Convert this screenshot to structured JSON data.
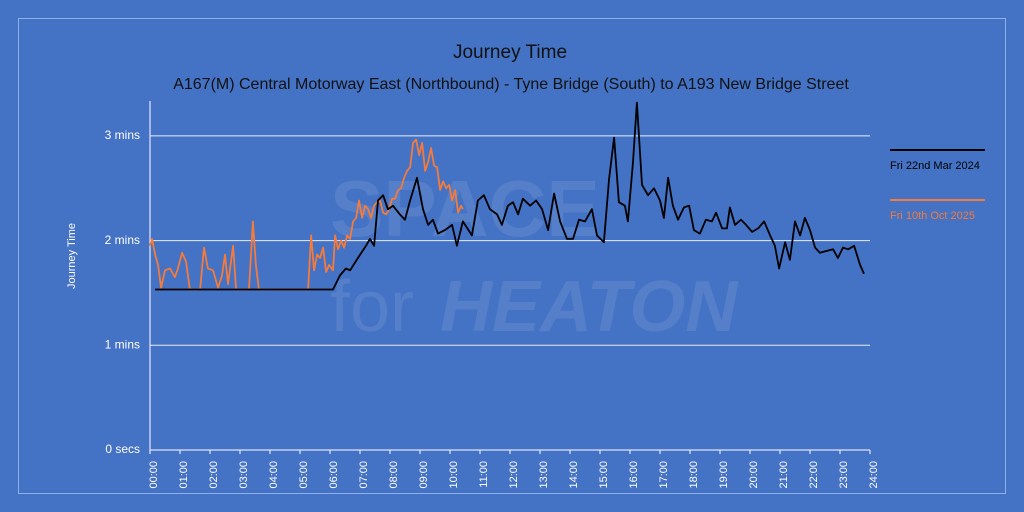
{
  "chart_data": {
    "type": "line",
    "title": "Journey Time",
    "subtitle": "A167(M) Central Motorway East (Northbound) - Tyne Bridge (South) to A193 New Bridge Street",
    "ylabel": "Journey Time",
    "watermark": [
      "SPACE",
      "for",
      "HEATON"
    ],
    "xlim": [
      0,
      24
    ],
    "xticks": [
      {
        "value": 0,
        "label": "00:00"
      },
      {
        "value": 1,
        "label": "01:00"
      },
      {
        "value": 2,
        "label": "02:00"
      },
      {
        "value": 3,
        "label": "03:00"
      },
      {
        "value": 4,
        "label": "04:00"
      },
      {
        "value": 5,
        "label": "05:00"
      },
      {
        "value": 6,
        "label": "06:00"
      },
      {
        "value": 7,
        "label": "07:00"
      },
      {
        "value": 8,
        "label": "08:00"
      },
      {
        "value": 9,
        "label": "09:00"
      },
      {
        "value": 10,
        "label": "10:00"
      },
      {
        "value": 11,
        "label": "11:00"
      },
      {
        "value": 12,
        "label": "12:00"
      },
      {
        "value": 13,
        "label": "13:00"
      },
      {
        "value": 14,
        "label": "14:00"
      },
      {
        "value": 15,
        "label": "15:00"
      },
      {
        "value": 16,
        "label": "16:00"
      },
      {
        "value": 17,
        "label": "17:00"
      },
      {
        "value": 18,
        "label": "18:00"
      },
      {
        "value": 19,
        "label": "19:00"
      },
      {
        "value": 20,
        "label": "20:00"
      },
      {
        "value": 21,
        "label": "21:00"
      },
      {
        "value": 22,
        "label": "22:00"
      },
      {
        "value": 23,
        "label": "23:00"
      },
      {
        "value": 24,
        "label": "24:00"
      }
    ],
    "ylim": [
      0,
      200
    ],
    "yticks": [
      {
        "value": 0,
        "label": "0 secs"
      },
      {
        "value": 60,
        "label": "1 mins"
      },
      {
        "value": 120,
        "label": "2 mins"
      },
      {
        "value": 180,
        "label": "3 mins"
      }
    ],
    "grid": true,
    "legend": "right",
    "series": [
      {
        "name": "Fri 22nd Mar 2024",
        "color": "#000000",
        "x": [
          0.17,
          5.67,
          6.1,
          6.33,
          6.53,
          6.67,
          6.93,
          7.2,
          7.33,
          7.47,
          7.6,
          7.77,
          7.93,
          8.1,
          8.33,
          8.5,
          8.67,
          8.9,
          9.1,
          9.27,
          9.43,
          9.6,
          9.83,
          10.07,
          10.23,
          10.43,
          10.73,
          10.93,
          11.13,
          11.33,
          11.57,
          11.73,
          11.93,
          12.1,
          12.27,
          12.43,
          12.67,
          12.87,
          13.07,
          13.27,
          13.47,
          13.67,
          13.9,
          14.1,
          14.3,
          14.5,
          14.73,
          14.9,
          15.13,
          15.3,
          15.47,
          15.63,
          15.83,
          15.93,
          16.1,
          16.23,
          16.4,
          16.6,
          16.8,
          17,
          17.13,
          17.27,
          17.43,
          17.6,
          17.8,
          17.97,
          18.13,
          18.33,
          18.53,
          18.73,
          18.87,
          19.07,
          19.23,
          19.33,
          19.5,
          19.7,
          19.87,
          20.07,
          20.27,
          20.47,
          20.67,
          20.83,
          20.97,
          21.17,
          21.33,
          21.5,
          21.67,
          21.83,
          22,
          22.17,
          22.33,
          22.53,
          22.77,
          22.93,
          23.1,
          23.27,
          23.47,
          23.67,
          23.8
        ],
        "values": [
          92,
          92,
          92,
          100,
          104,
          103,
          110,
          117,
          121,
          117,
          143,
          146,
          138,
          140,
          135,
          132,
          143,
          156,
          138,
          129,
          132,
          124,
          126,
          129,
          117,
          131,
          123,
          143,
          146,
          138,
          135,
          129,
          140,
          142,
          135,
          144,
          140,
          143,
          138,
          126,
          147,
          131,
          121,
          121,
          132,
          131,
          138,
          123,
          119,
          155,
          179,
          142,
          140,
          131,
          165,
          199,
          152,
          146,
          150,
          143,
          133,
          156,
          140,
          132,
          139,
          140,
          126,
          124,
          132,
          131,
          136,
          127,
          127,
          139,
          129,
          132,
          129,
          125,
          127,
          131,
          123,
          117,
          104,
          119,
          109,
          131,
          123,
          133,
          126,
          116,
          113,
          114,
          115,
          110,
          116,
          115,
          117,
          106,
          101
        ]
      },
      {
        "name": "Fri 10th Oct 2025",
        "color": "#f47b3c",
        "x": [
          0,
          0.07,
          0.17,
          0.27,
          0.37,
          0.5,
          0.67,
          0.83,
          0.93,
          1.07,
          1.2,
          1.33,
          1.67,
          1.8,
          1.93,
          2.1,
          2.27,
          2.4,
          2.5,
          2.6,
          2.77,
          2.87,
          3.3,
          3.43,
          3.53,
          3.63,
          5.27,
          5.37,
          5.47,
          5.57,
          5.67,
          5.77,
          5.87,
          5.97,
          6.1,
          6.17,
          6.27,
          6.37,
          6.47,
          6.57,
          6.67,
          6.77,
          6.87,
          6.97,
          7.07,
          7.17,
          7.27,
          7.37,
          7.47,
          7.57,
          7.67,
          7.77,
          7.87,
          7.97,
          8.07,
          8.17,
          8.27,
          8.37,
          8.47,
          8.57,
          8.67,
          8.77,
          8.87,
          8.97,
          9.07,
          9.17,
          9.27,
          9.37,
          9.47,
          9.57,
          9.67,
          9.77,
          9.87,
          9.97,
          10.07,
          10.17,
          10.27,
          10.37,
          10.43
        ],
        "values": [
          117,
          121,
          112,
          106,
          93,
          103,
          104,
          99,
          104,
          113,
          108,
          92,
          92,
          116,
          104,
          103,
          93,
          100,
          112,
          95,
          117,
          92,
          92,
          131,
          106,
          92,
          92,
          123,
          103,
          112,
          110,
          116,
          102,
          106,
          103,
          123,
          115,
          120,
          116,
          123,
          121,
          131,
          133,
          143,
          133,
          140,
          138,
          133,
          140,
          142,
          143,
          136,
          135,
          138,
          144,
          144,
          149,
          150,
          156,
          160,
          162,
          176,
          178,
          169,
          176,
          160,
          165,
          173,
          163,
          162,
          149,
          154,
          150,
          152,
          143,
          149,
          136,
          140,
          138
        ]
      }
    ]
  }
}
